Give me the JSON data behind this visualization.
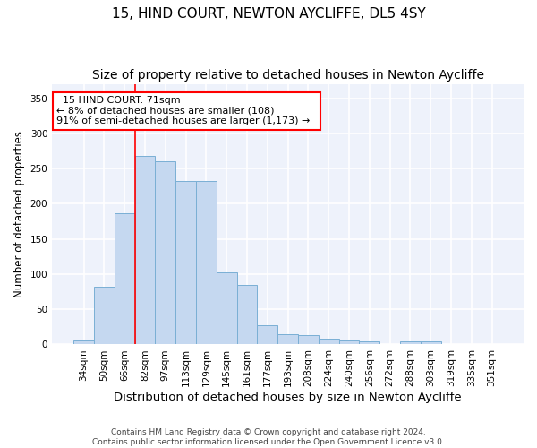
{
  "title_line1": "15, HIND COURT, NEWTON AYCLIFFE, DL5 4SY",
  "title_line2": "Size of property relative to detached houses in Newton Aycliffe",
  "xlabel": "Distribution of detached houses by size in Newton Aycliffe",
  "ylabel": "Number of detached properties",
  "bar_values": [
    6,
    82,
    187,
    268,
    260,
    233,
    233,
    103,
    85,
    27,
    15,
    13,
    8,
    6,
    4,
    1,
    4,
    4,
    0,
    0,
    0
  ],
  "bar_labels": [
    "34sqm",
    "50sqm",
    "66sqm",
    "82sqm",
    "97sqm",
    "113sqm",
    "129sqm",
    "145sqm",
    "161sqm",
    "177sqm",
    "193sqm",
    "208sqm",
    "224sqm",
    "240sqm",
    "256sqm",
    "272sqm",
    "288sqm",
    "303sqm",
    "319sqm",
    "335sqm",
    "351sqm"
  ],
  "bar_color": "#c5d8f0",
  "bar_edge_color": "#7aafd4",
  "vline_x": 2.5,
  "vline_color": "red",
  "annotation_title": "15 HIND COURT: 71sqm",
  "annotation_line1": "← 8% of detached houses are smaller (108)",
  "annotation_line2": "91% of semi-detached houses are larger (1,173) →",
  "annotation_box_color": "white",
  "annotation_box_edge_color": "red",
  "footer_line1": "Contains HM Land Registry data © Crown copyright and database right 2024.",
  "footer_line2": "Contains public sector information licensed under the Open Government Licence v3.0.",
  "ylim": [
    0,
    370
  ],
  "yticks": [
    0,
    50,
    100,
    150,
    200,
    250,
    300,
    350
  ],
  "bg_color": "#eef2fb",
  "grid_color": "white",
  "title_fontsize": 11,
  "subtitle_fontsize": 10,
  "xlabel_fontsize": 9.5,
  "ylabel_fontsize": 8.5,
  "tick_fontsize": 7.5,
  "annotation_fontsize": 8,
  "footer_fontsize": 6.5
}
